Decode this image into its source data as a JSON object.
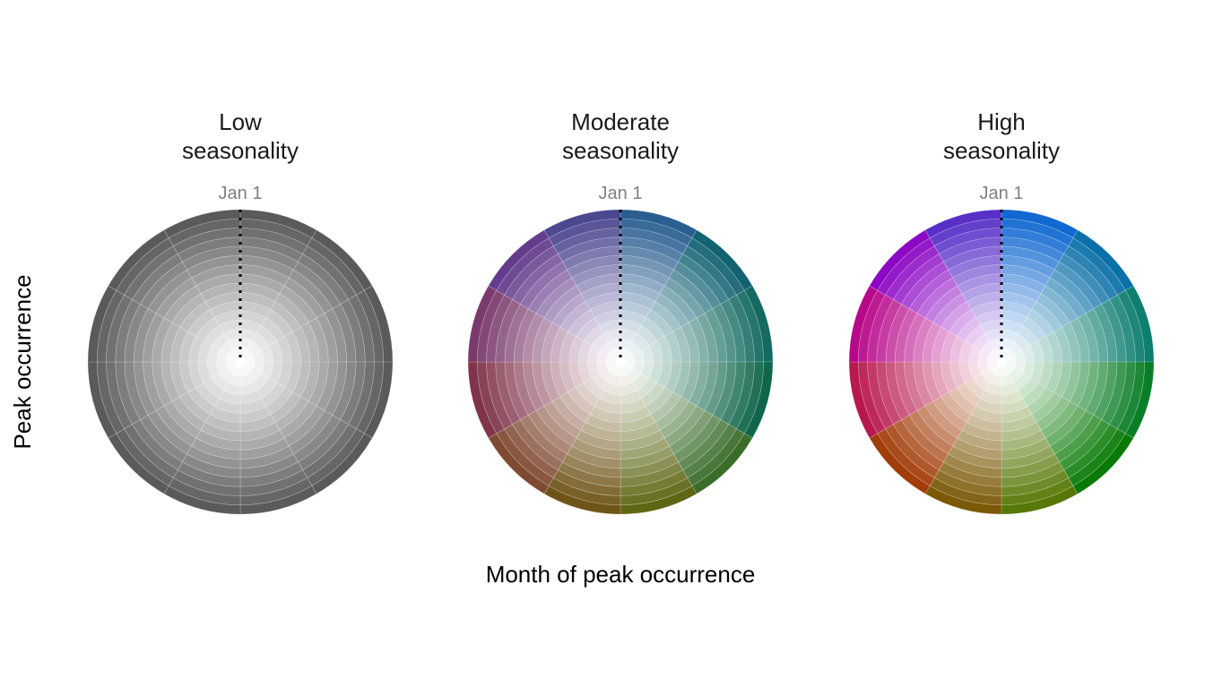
{
  "chart_data": {
    "type": "polar-heatmap",
    "xlabel": "Month of peak occurrence",
    "ylabel": "Peak occurrence",
    "start_label": "Jan 1",
    "months": 12,
    "radial_levels": 16,
    "panels": [
      {
        "title_line1": "Low",
        "title_line2": "seasonality",
        "chroma": 0.0,
        "colors": [
          "#5a5a5a",
          "#5a5a5a",
          "#5a5a5a",
          "#5a5a5a",
          "#5a5a5a",
          "#5a5a5a",
          "#5a5a5a",
          "#5a5a5a",
          "#5a5a5a",
          "#5a5a5a",
          "#5a5a5a",
          "#5a5a5a"
        ]
      },
      {
        "title_line1": "Moderate",
        "title_line2": "seasonality",
        "chroma": 0.5,
        "colors": [
          "#2a5e90",
          "#126272",
          "#146a60",
          "#10664a",
          "#3a6c2a",
          "#5e6614",
          "#6e5418",
          "#804a32",
          "#80344a",
          "#7a3a6c",
          "#643c8c",
          "#4c4890"
        ]
      },
      {
        "title_line1": "High",
        "title_line2": "seasonality",
        "chroma": 1.0,
        "colors": [
          "#1068d0",
          "#0a70a8",
          "#0e7e6e",
          "#0a7e26",
          "#087a06",
          "#567806",
          "#7a5806",
          "#a23c08",
          "#b8184e",
          "#b8088a",
          "#8c08c4",
          "#5830c8"
        ]
      }
    ]
  }
}
